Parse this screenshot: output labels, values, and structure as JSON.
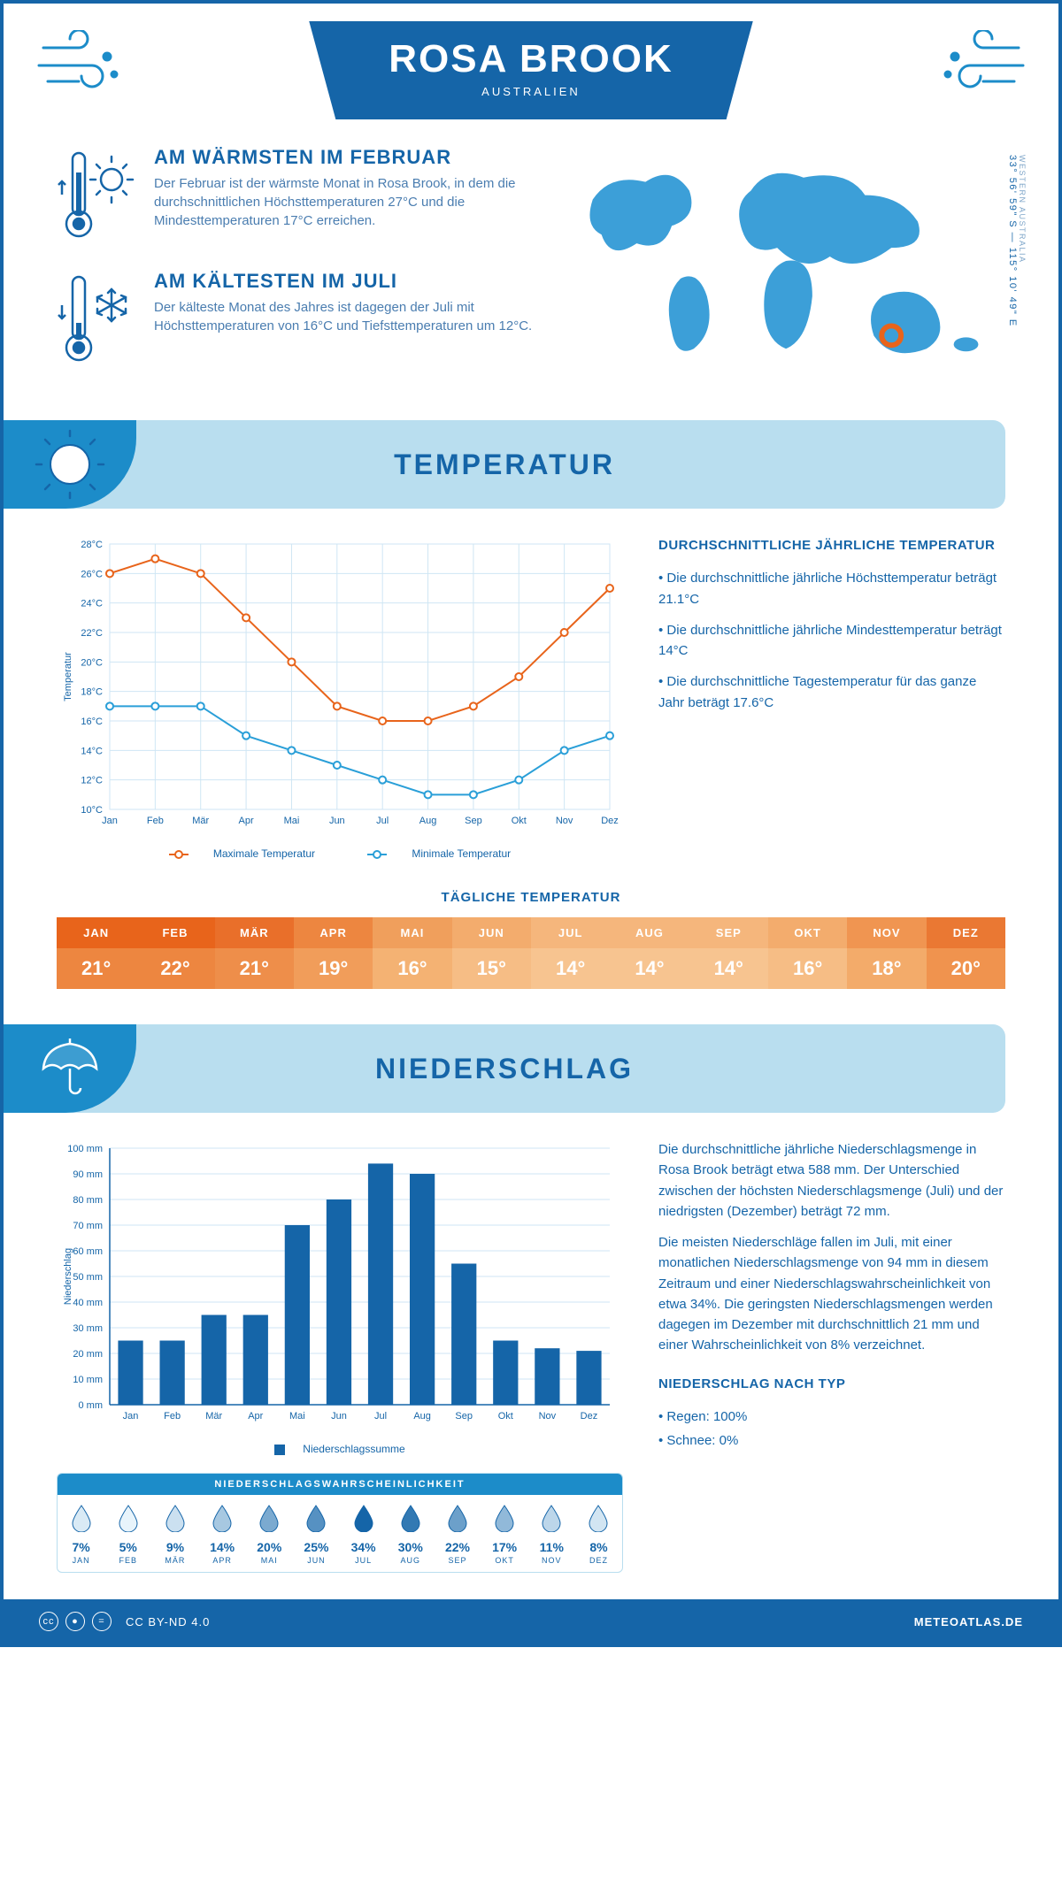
{
  "header": {
    "title": "ROSA BROOK",
    "subtitle": "AUSTRALIEN"
  },
  "coords": {
    "lat": "33° 56' 59\" S",
    "lon": "115° 10' 49\" E",
    "region": "WESTERN AUSTRALIA"
  },
  "facts": {
    "warm": {
      "title": "AM WÄRMSTEN IM FEBRUAR",
      "text": "Der Februar ist der wärmste Monat in Rosa Brook, in dem die durchschnittlichen Höchsttemperaturen 27°C und die Mindesttemperaturen 17°C erreichen."
    },
    "cold": {
      "title": "AM KÄLTESTEN IM JULI",
      "text": "Der kälteste Monat des Jahres ist dagegen der Juli mit Höchsttemperaturen von 16°C und Tiefsttemperaturen um 12°C."
    }
  },
  "sections": {
    "temp": "TEMPERATUR",
    "precip": "NIEDERSCHLAG"
  },
  "months": [
    "Jan",
    "Feb",
    "Mär",
    "Apr",
    "Mai",
    "Jun",
    "Jul",
    "Aug",
    "Sep",
    "Okt",
    "Nov",
    "Dez"
  ],
  "months_upper": [
    "JAN",
    "FEB",
    "MÄR",
    "APR",
    "MAI",
    "JUN",
    "JUL",
    "AUG",
    "SEP",
    "OKT",
    "NOV",
    "DEZ"
  ],
  "temp_chart": {
    "ylabel": "Temperatur",
    "ymin": 10,
    "ymax": 28,
    "ystep": 2,
    "max_series": [
      26,
      27,
      26,
      23,
      20,
      17,
      16,
      16,
      17,
      19,
      22,
      25
    ],
    "min_series": [
      17,
      17,
      17,
      15,
      14,
      13,
      12,
      11,
      11,
      12,
      14,
      15
    ],
    "max_color": "#e8641b",
    "min_color": "#2a9fd8",
    "grid_color": "#cfe6f4",
    "legend_max": "Maximale Temperatur",
    "legend_min": "Minimale Temperatur"
  },
  "temp_summary": {
    "title": "DURCHSCHNITTLICHE JÄHRLICHE TEMPERATUR",
    "items": [
      "• Die durchschnittliche jährliche Höchsttemperatur beträgt 21.1°C",
      "• Die durchschnittliche jährliche Mindesttemperatur beträgt 14°C",
      "• Die durchschnittliche Tagestemperatur für das ganze Jahr beträgt 17.6°C"
    ]
  },
  "daily_temp": {
    "title": "TÄGLICHE TEMPERATUR",
    "values": [
      "21°",
      "22°",
      "21°",
      "19°",
      "16°",
      "15°",
      "14°",
      "14°",
      "14°",
      "16°",
      "18°",
      "20°"
    ],
    "hdr_colors": [
      "#e8641b",
      "#e8641b",
      "#e96f2a",
      "#ed8640",
      "#f09f5c",
      "#f3ac6d",
      "#f5b67c",
      "#f5b67c",
      "#f5b67c",
      "#f3ac6d",
      "#f09551",
      "#ea7833"
    ],
    "val_colors": [
      "#ed8640",
      "#ed8640",
      "#ee8e4a",
      "#f19d5a",
      "#f4b273",
      "#f6bd85",
      "#f7c490",
      "#f7c490",
      "#f7c490",
      "#f6bd85",
      "#f3ab6a",
      "#f0934e"
    ]
  },
  "precip_chart": {
    "ylabel": "Niederschlag",
    "ymin": 0,
    "ymax": 100,
    "ystep": 10,
    "values": [
      25,
      25,
      35,
      35,
      70,
      80,
      94,
      90,
      55,
      25,
      22,
      21
    ],
    "bar_color": "#1565a8",
    "grid_color": "#cfe6f4",
    "legend": "Niederschlagssumme"
  },
  "precip_text": {
    "p1": "Die durchschnittliche jährliche Niederschlagsmenge in Rosa Brook beträgt etwa 588 mm. Der Unterschied zwischen der höchsten Niederschlagsmenge (Juli) und der niedrigsten (Dezember) beträgt 72 mm.",
    "p2": "Die meisten Niederschläge fallen im Juli, mit einer monatlichen Niederschlagsmenge von 94 mm in diesem Zeitraum und einer Niederschlagswahrscheinlichkeit von etwa 34%. Die geringsten Niederschlagsmengen werden dagegen im Dezember mit durchschnittlich 21 mm und einer Wahrscheinlichkeit von 8% verzeichnet.",
    "type_title": "NIEDERSCHLAG NACH TYP",
    "type_items": [
      "• Regen: 100%",
      "• Schnee: 0%"
    ]
  },
  "precip_prob": {
    "title": "NIEDERSCHLAGSWAHRSCHEINLICHKEIT",
    "values": [
      7,
      5,
      9,
      14,
      20,
      25,
      34,
      30,
      22,
      17,
      11,
      8
    ],
    "min_color": "#e8f4fb",
    "mid_color": "#8cc9e8",
    "max_color": "#1565a8"
  },
  "footer": {
    "license": "CC BY-ND 4.0",
    "site": "METEOATLAS.DE"
  },
  "colors": {
    "primary": "#1565a8",
    "accent": "#1c8cc9",
    "banner": "#b9deef",
    "text_muted": "#4a7db0",
    "marker": "#e8641b"
  }
}
